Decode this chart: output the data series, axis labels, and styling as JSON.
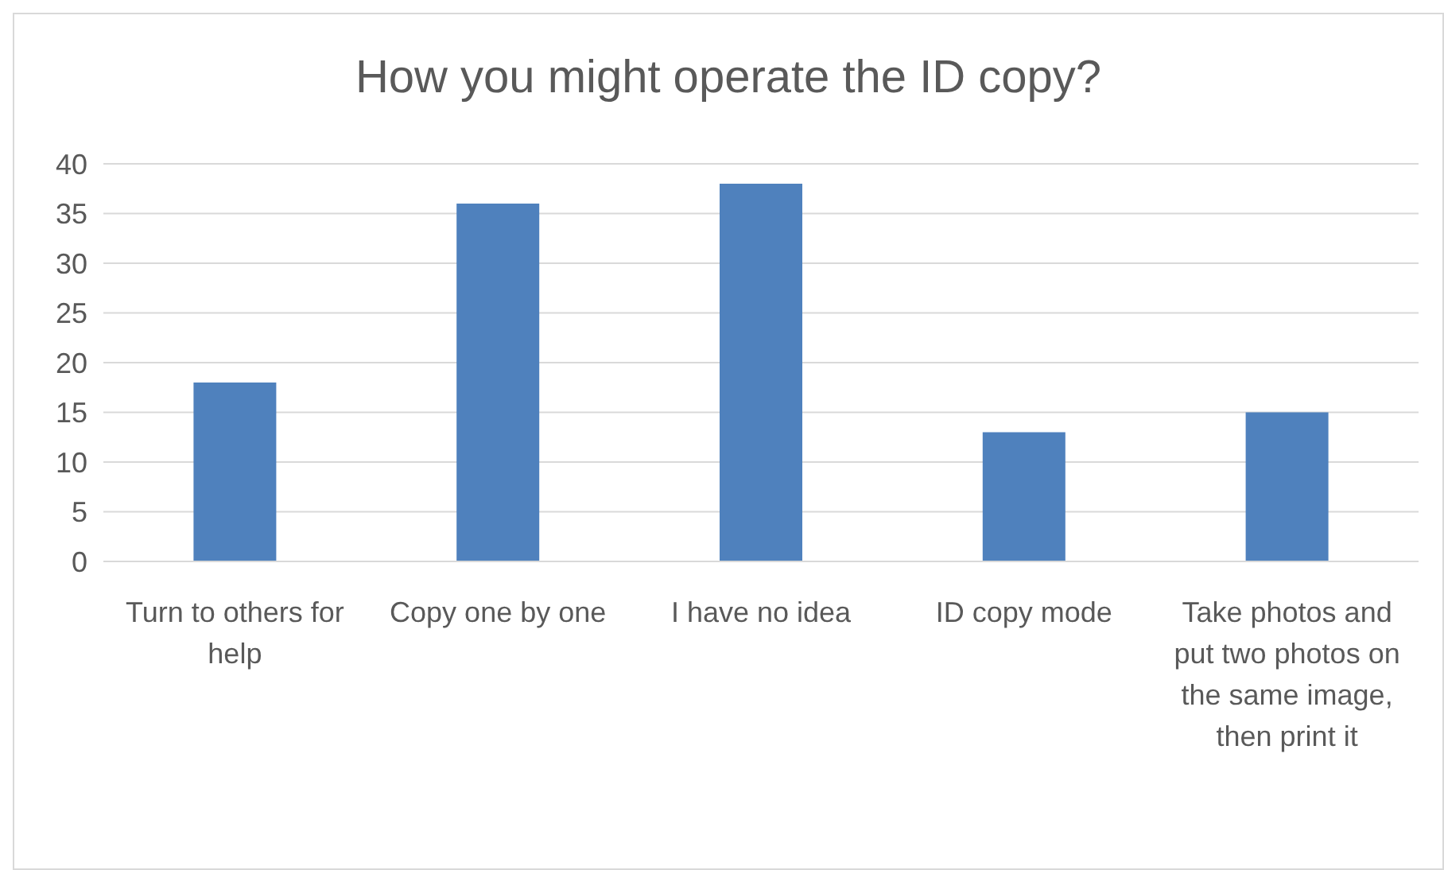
{
  "chart_data": {
    "type": "bar",
    "title": "How you might operate the ID copy?",
    "categories": [
      "Turn to others for help",
      "Copy one by one",
      "I have no idea",
      "ID copy mode",
      "Take photos and put two photos on the same image, then print it"
    ],
    "values": [
      18,
      36,
      38,
      13,
      15
    ],
    "color": "#4f81bd",
    "ylim": [
      0,
      40
    ],
    "yticks": [
      0,
      5,
      10,
      15,
      20,
      25,
      30,
      35,
      40
    ],
    "grid": true
  }
}
